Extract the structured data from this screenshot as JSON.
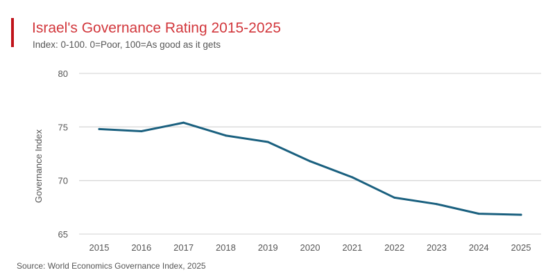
{
  "title": "Israel's Governance Rating 2015-2025",
  "subtitle": "Index: 0-100. 0=Poor, 100=As good as it gets",
  "source": "Source: World Economics Governance Index, 2025",
  "colors": {
    "accent": "#c0131a",
    "title": "#d2373c",
    "line": "#1a607f",
    "grid": "#d9d9d9"
  },
  "chart_data": {
    "type": "line",
    "title": "Israel's Governance Rating 2015-2025",
    "xlabel": "",
    "ylabel": "Governance Index",
    "ylim": [
      65,
      80
    ],
    "yticks": [
      80,
      75,
      70,
      65
    ],
    "grid": true,
    "categories": [
      "2015",
      "2016",
      "2017",
      "2018",
      "2019",
      "2020",
      "2021",
      "2022",
      "2023",
      "2024",
      "2025"
    ],
    "values": [
      74.8,
      74.6,
      75.4,
      74.2,
      73.6,
      71.8,
      70.3,
      68.4,
      67.8,
      66.9,
      66.8
    ]
  }
}
